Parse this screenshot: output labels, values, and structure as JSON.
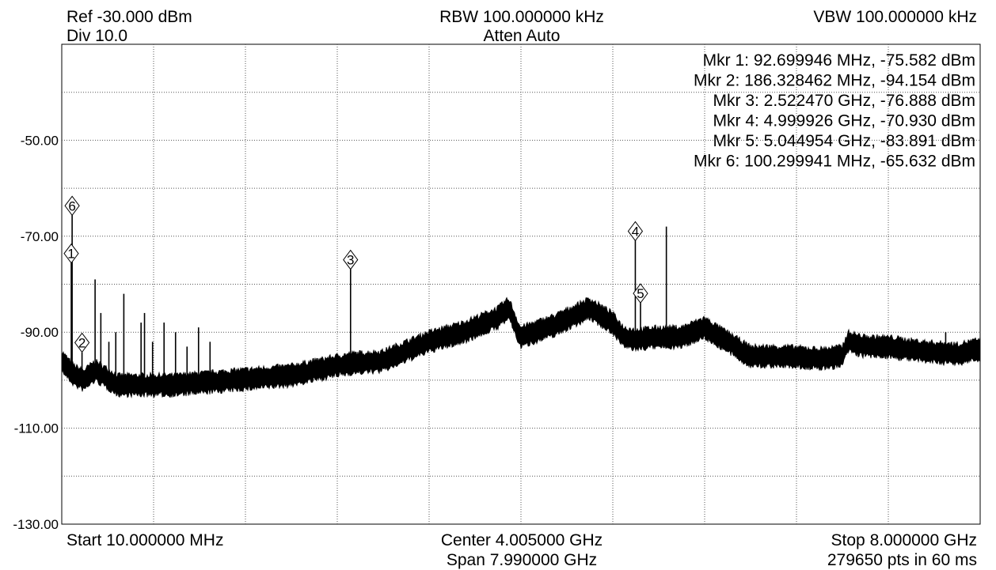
{
  "header": {
    "ref": "Ref -30.000 dBm",
    "div": "Div 10.0",
    "rbw": "RBW 100.000000 kHz",
    "atten": "Atten Auto",
    "vbw": "VBW 100.000000 kHz"
  },
  "footer": {
    "start": "Start 10.000000 MHz",
    "center": "Center 4.005000 GHz",
    "span": "Span 7.990000 GHz",
    "stop": "Stop 8.000000 GHz",
    "sweep": "279650 pts in 60 ms"
  },
  "chart_data": {
    "type": "line",
    "title": "",
    "xlabel": "",
    "ylabel": "",
    "x_unit": "GHz",
    "y_unit": "dBm",
    "xlim": [
      0.01,
      8.0
    ],
    "ylim": [
      -130,
      -30
    ],
    "y_ticks": [
      {
        "value": -50,
        "label": "-50.00"
      },
      {
        "value": -70,
        "label": "-70.00"
      },
      {
        "value": -90,
        "label": "-90.00"
      },
      {
        "value": -110,
        "label": "-110.00"
      },
      {
        "value": -130,
        "label": "-130.00"
      }
    ],
    "x_divisions": 10,
    "y_divisions": 10,
    "grid": "dotted",
    "trace_color": "#000000",
    "noise_floor": {
      "x": [
        0.01,
        0.08,
        0.12,
        0.2,
        0.3,
        0.5,
        0.7,
        1.0,
        1.5,
        2.0,
        2.4,
        2.52,
        2.8,
        3.0,
        3.2,
        3.5,
        3.8,
        3.9,
        4.0,
        4.3,
        4.6,
        4.8,
        4.9,
        5.0,
        5.2,
        5.4,
        5.6,
        5.8,
        6.0,
        6.3,
        6.6,
        6.8,
        6.85,
        7.0,
        7.2,
        7.5,
        7.8,
        8.0
      ],
      "y": [
        -96,
        -98,
        -99,
        -100,
        -98,
        -101,
        -101,
        -101,
        -100,
        -99,
        -97,
        -96.5,
        -96,
        -94,
        -92,
        -90,
        -87,
        -85,
        -91,
        -88.5,
        -85,
        -88,
        -91,
        -91.5,
        -91,
        -91,
        -89,
        -92,
        -95,
        -95,
        -95.5,
        -95,
        -92,
        -93,
        -93,
        -94,
        -94.5,
        -93.5
      ]
    },
    "spurs": {
      "x": [
        0.0927,
        0.1003,
        0.1863,
        0.3,
        0.35,
        0.42,
        0.48,
        0.55,
        0.7,
        0.73,
        0.8,
        0.9,
        1.0,
        1.1,
        1.2,
        1.3,
        2.5225,
        4.9999,
        5.045,
        5.27,
        7.7
      ],
      "y": [
        -75.6,
        -65.6,
        -94.2,
        -79,
        -86,
        -92,
        -90,
        -82,
        -88,
        -86,
        -92,
        -88,
        -90,
        -93,
        -89,
        -92,
        -76.9,
        -70.9,
        -83.9,
        -68,
        -90
      ]
    },
    "markers": [
      {
        "id": "1",
        "freq": "92.699946 MHz",
        "level": "-75.582 dBm",
        "x": 0.092699946,
        "y": -75.582,
        "readout": "Mkr 1: 92.699946 MHz, -75.582 dBm"
      },
      {
        "id": "2",
        "freq": "186.328462 MHz",
        "level": "-94.154 dBm",
        "x": 0.186328462,
        "y": -94.154,
        "readout": "Mkr 2: 186.328462 MHz, -94.154 dBm"
      },
      {
        "id": "3",
        "freq": "2.522470 GHz",
        "level": "-76.888 dBm",
        "x": 2.52247,
        "y": -76.888,
        "readout": "Mkr 3: 2.522470 GHz, -76.888 dBm"
      },
      {
        "id": "4",
        "freq": "4.999926 GHz",
        "level": "-70.930 dBm",
        "x": 4.999926,
        "y": -70.93,
        "readout": "Mkr 4: 4.999926 GHz, -70.930 dBm"
      },
      {
        "id": "5",
        "freq": "5.044954 GHz",
        "level": "-83.891 dBm",
        "x": 5.044954,
        "y": -83.891,
        "readout": "Mkr 5: 5.044954 GHz, -83.891 dBm"
      },
      {
        "id": "6",
        "freq": "100.299941 MHz",
        "level": "-65.632 dBm",
        "x": 0.100299941,
        "y": -65.632,
        "readout": "Mkr 6: 100.299941 MHz, -65.632 dBm"
      }
    ]
  }
}
